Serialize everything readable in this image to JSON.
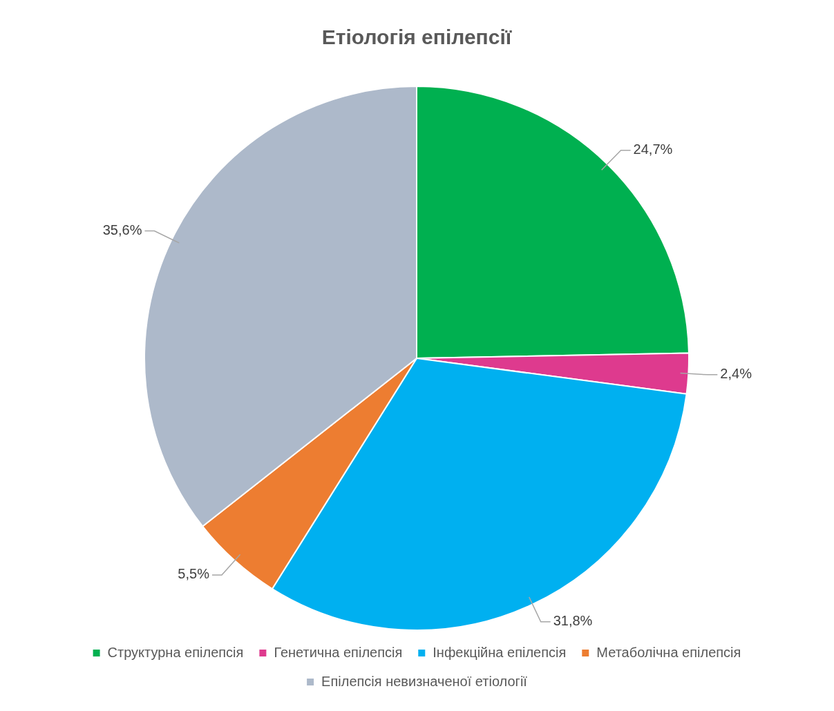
{
  "chart_data": {
    "type": "pie",
    "title": "Етіологія епілепсії",
    "categories": [
      "Структурна епілепсія",
      "Генетична епілепсія",
      "Інфекційна епілепсія",
      "Метаболічна епілепсія",
      "Епілепсія невизначеної етіології"
    ],
    "values": [
      24.7,
      2.4,
      31.8,
      5.5,
      35.6
    ],
    "colors": [
      "#00b050",
      "#de3a8e",
      "#00b0f0",
      "#ed7d31",
      "#adb9ca"
    ],
    "value_labels": [
      "24,7%",
      "2,4%",
      "31,8%",
      "5,5%",
      "35,6%"
    ],
    "legend": "bottom"
  }
}
